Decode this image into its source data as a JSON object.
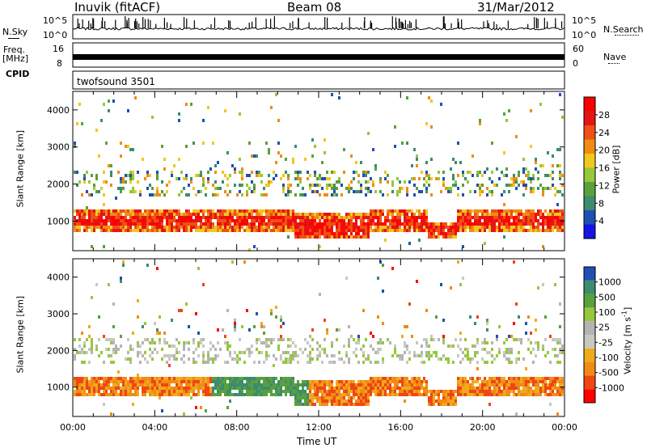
{
  "header": {
    "station": "Inuvik (fitACF)",
    "beam": "Beam 08",
    "date": "31/Mar/2012"
  },
  "side_labels": {
    "nsky": "N.Sky",
    "freq": "Freq.",
    "mhz": "[MHz]",
    "cpid": "CPID",
    "nsearch": "N.Search",
    "nave": "Nave",
    "cpid_value": "twofsound 3501"
  },
  "small_axes": {
    "noise_left_top": "10^5",
    "noise_left_bottom": "10^0",
    "noise_right_top": "10^5",
    "noise_right_bottom": "10^0",
    "freq_left_top": "16",
    "freq_left_bottom": "8",
    "nave_right_top": "60",
    "nave_right_bottom": "0"
  },
  "colors": {
    "power": [
      "#1414e6",
      "#1e50b4",
      "#3c8c6e",
      "#5aa03c",
      "#96c83c",
      "#f0c81e",
      "#f08c14",
      "#f05014",
      "#e61414",
      "#ff0000"
    ],
    "velocity": [
      "#ff0000",
      "#f04614",
      "#f08c14",
      "#f0aa1e",
      "#c8c8c0",
      "#b4b4b4",
      "#96c83c",
      "#5aa03c",
      "#3c8c6e",
      "#1e50b4"
    ]
  },
  "chart_data": [
    {
      "type": "heatmap",
      "title": "Power",
      "xlabel": "",
      "ylabel": "Slant Range [km]",
      "xlim": [
        "00:00",
        "24:00"
      ],
      "ylim": [
        200,
        4500
      ],
      "y_ticks": [
        "1000",
        "2000",
        "3000",
        "4000"
      ],
      "colorbar": {
        "label": "Power [dB]",
        "ticks": [
          "4",
          "8",
          "12",
          "16",
          "20",
          "24",
          "28"
        ],
        "range": [
          0,
          30
        ]
      }
    },
    {
      "type": "heatmap",
      "title": "Velocity",
      "xlabel": "Time UT",
      "ylabel": "Slant Range [km]",
      "xlim": [
        "00:00",
        "24:00"
      ],
      "ylim": [
        200,
        4500
      ],
      "x_ticks": [
        "00:00",
        "04:00",
        "08:00",
        "12:00",
        "16:00",
        "20:00",
        "00:00"
      ],
      "y_ticks": [
        "1000",
        "2000",
        "3000",
        "4000"
      ],
      "colorbar": {
        "label": "Velocity [m s^-1]",
        "ticks": [
          "1000",
          "500",
          "100",
          "25",
          "-25",
          "-100",
          "-500",
          "-1000"
        ],
        "range": [
          -1000,
          1000
        ]
      }
    }
  ]
}
